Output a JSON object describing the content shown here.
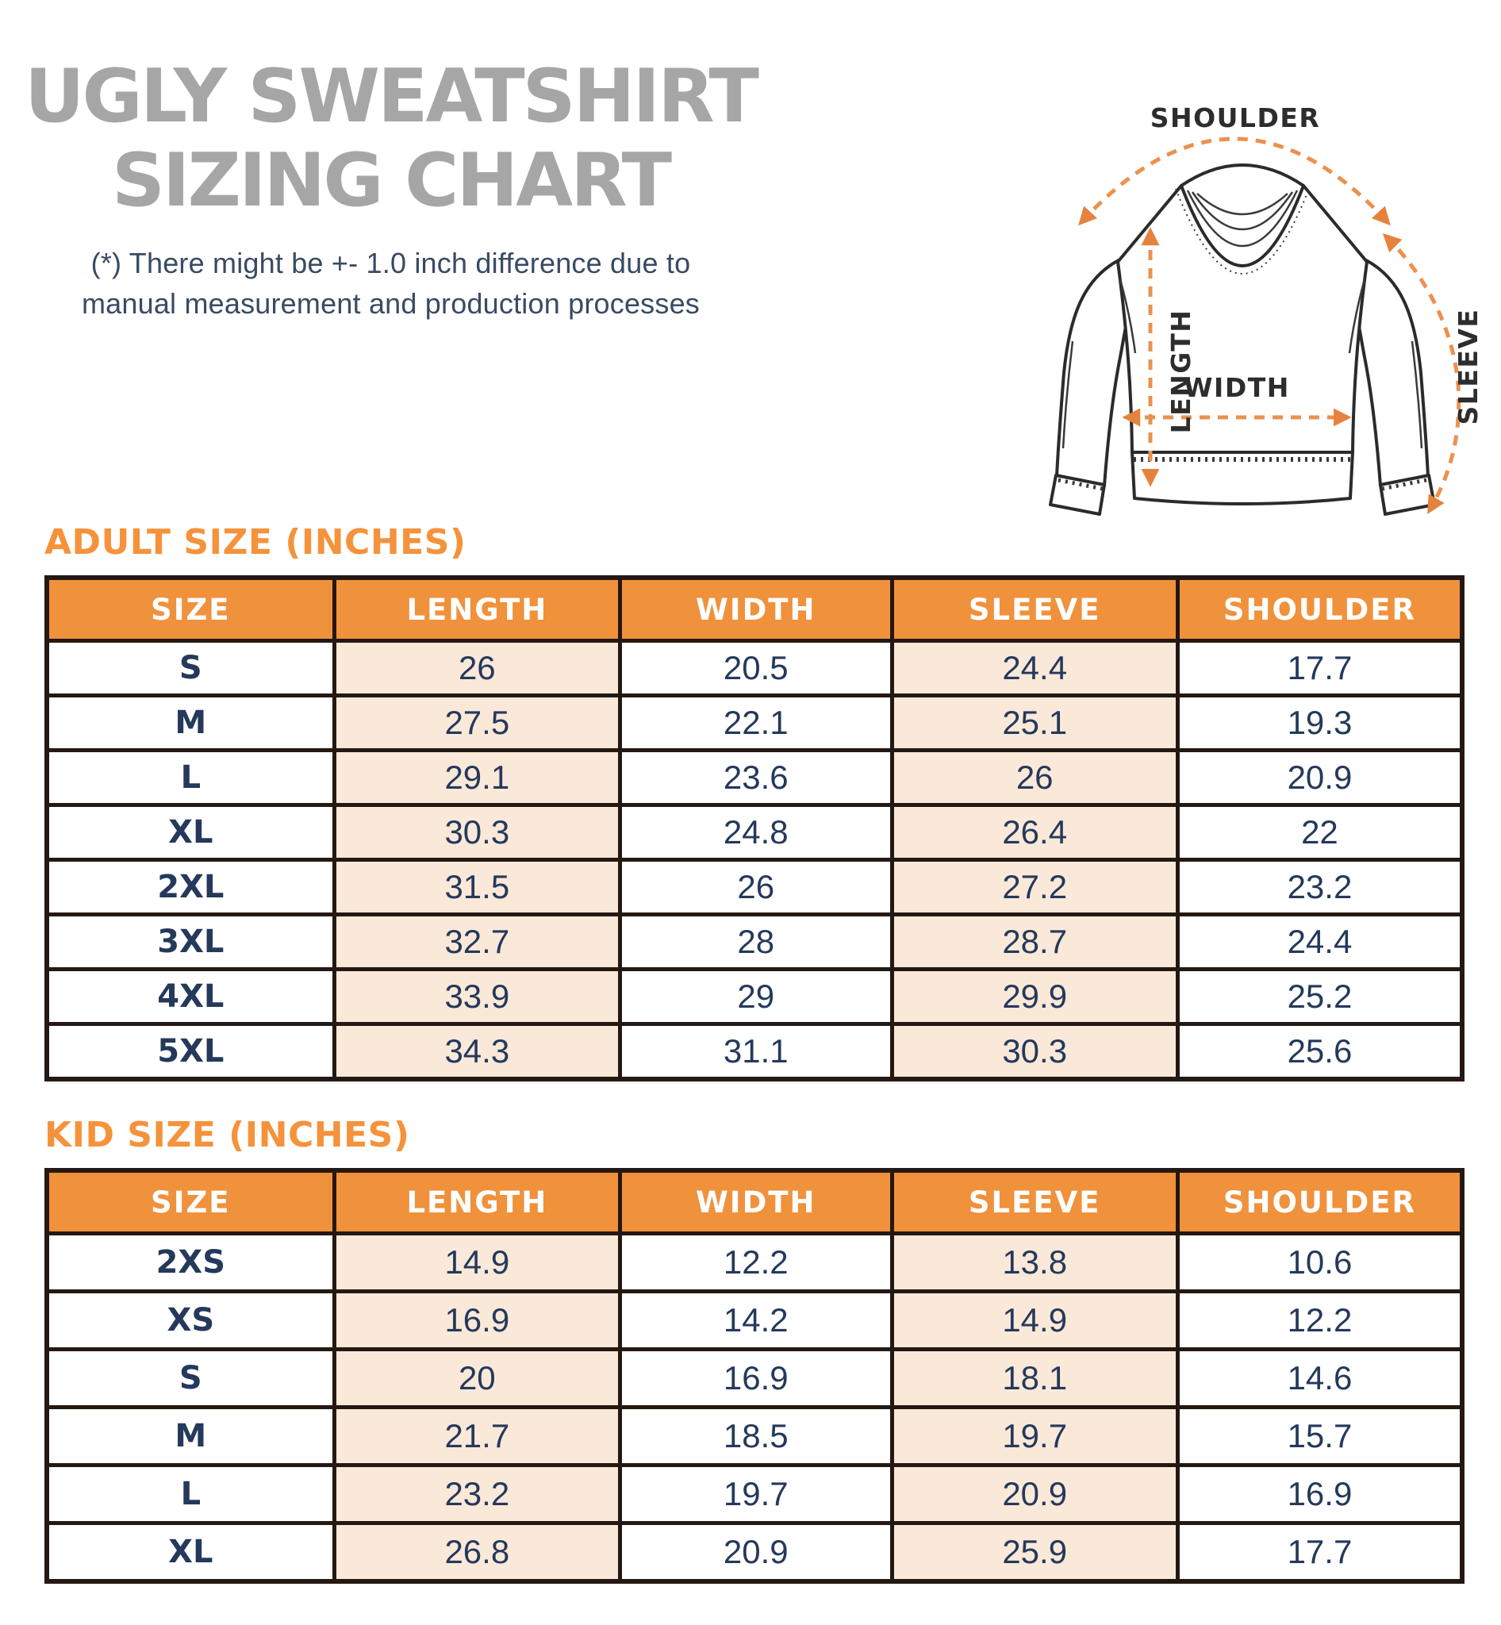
{
  "title": {
    "line1": "UGLY SWEATSHIRT",
    "line2": "SIZING CHART"
  },
  "disclaimer": {
    "line1": "(*) There might be +- 1.0 inch difference due to",
    "line2": "manual measurement and production processes"
  },
  "diagram": {
    "shoulder_label": "SHOULDER",
    "width_label": "WIDTH",
    "length_label": "LENGTH",
    "sleeve_label": "SLEEVE"
  },
  "tables": {
    "adult": {
      "heading": "ADULT SIZE (INCHES)",
      "columns": [
        "SIZE",
        "LENGTH",
        "WIDTH",
        "SLEEVE",
        "SHOULDER"
      ],
      "rows": [
        [
          "S",
          "26",
          "20.5",
          "24.4",
          "17.7"
        ],
        [
          "M",
          "27.5",
          "22.1",
          "25.1",
          "19.3"
        ],
        [
          "L",
          "29.1",
          "23.6",
          "26",
          "20.9"
        ],
        [
          "XL",
          "30.3",
          "24.8",
          "26.4",
          "22"
        ],
        [
          "2XL",
          "31.5",
          "26",
          "27.2",
          "23.2"
        ],
        [
          "3XL",
          "32.7",
          "28",
          "28.7",
          "24.4"
        ],
        [
          "4XL",
          "33.9",
          "29",
          "29.9",
          "25.2"
        ],
        [
          "5XL",
          "34.3",
          "31.1",
          "30.3",
          "25.6"
        ]
      ]
    },
    "kid": {
      "heading": "KID SIZE (INCHES)",
      "columns": [
        "SIZE",
        "LENGTH",
        "WIDTH",
        "SLEEVE",
        "SHOULDER"
      ],
      "rows": [
        [
          "2XS",
          "14.9",
          "12.2",
          "13.8",
          "10.6"
        ],
        [
          "XS",
          "16.9",
          "14.2",
          "14.9",
          "12.2"
        ],
        [
          "S",
          "20",
          "16.9",
          "18.1",
          "14.6"
        ],
        [
          "M",
          "21.7",
          "18.5",
          "19.7",
          "15.7"
        ],
        [
          "L",
          "23.2",
          "19.7",
          "20.9",
          "16.9"
        ],
        [
          "XL",
          "26.8",
          "20.9",
          "25.9",
          "17.7"
        ]
      ]
    }
  },
  "colors": {
    "header_orange": "#f0913c",
    "heading_orange": "#f5923b",
    "peach_cell": "#fae8d9",
    "navy_text": "#24395b",
    "title_gray": "#a6a6a6",
    "table_border": "#241812",
    "arrow_orange": "#eb9150",
    "outline_dark": "#2b2b2b"
  }
}
